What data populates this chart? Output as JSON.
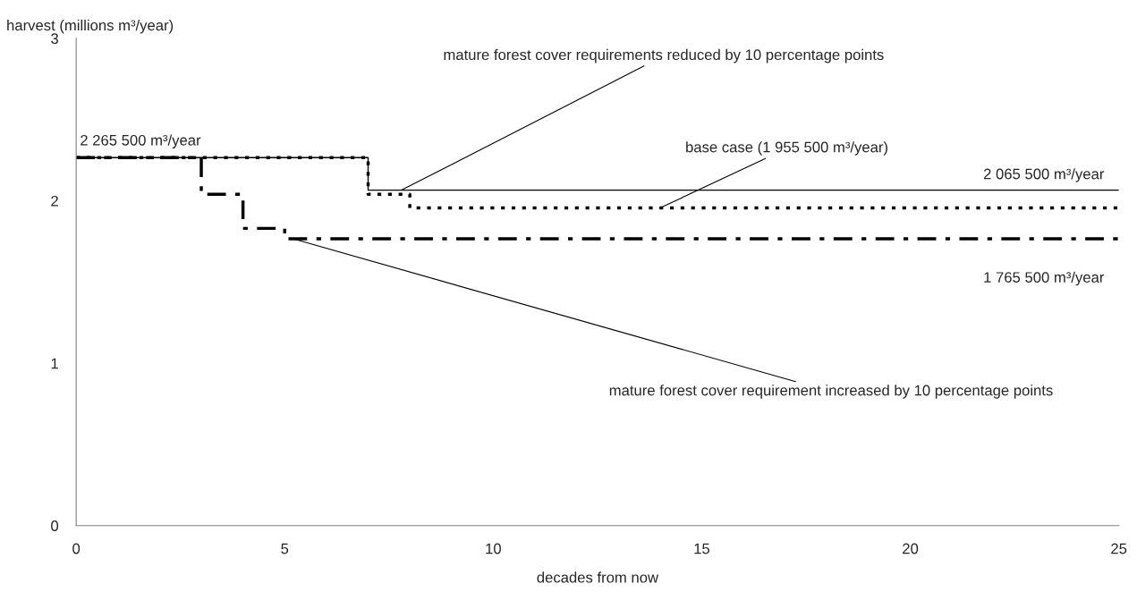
{
  "chart_data": {
    "type": "step",
    "ylabel": "harvest (millions m³/year)",
    "xlabel": "decades from now",
    "xlim": [
      0,
      25
    ],
    "xticks": [
      0,
      5,
      10,
      15,
      20,
      25
    ],
    "ylim": [
      0,
      3
    ],
    "yticks": [
      0,
      1,
      2,
      3
    ],
    "grid": false,
    "legend": false,
    "series": [
      {
        "color": "#000000",
        "line_style": "solid",
        "x": [
          0,
          7,
          25
        ],
        "values": [
          2.2655,
          2.0655,
          2.0655
        ]
      },
      {
        "color": "#000000",
        "line_style": "dotted",
        "x": [
          0,
          7,
          8,
          25
        ],
        "values": [
          2.2655,
          2.04,
          1.9555,
          1.9555
        ]
      },
      {
        "color": "#000000",
        "line_style": "dashed",
        "x": [
          0,
          3,
          4,
          5,
          25
        ],
        "values": [
          2.2655,
          2.04,
          1.83,
          1.7655,
          1.7655
        ]
      }
    ],
    "annotations": [
      {
        "text": "mature forest cover requirements reduced by 10 percentage points",
        "x": 7.8,
        "y": 2.0655
      },
      {
        "text": "base case (1 955 500 m³/year)",
        "x": 14,
        "y": 1.9555
      },
      {
        "text": "mature forest cover requirement increased by 10 percentage points",
        "x": 5.2,
        "y": 1.7655
      },
      {
        "text": "2 265 500 m³/year",
        "x": 0,
        "y": 2.2655
      },
      {
        "text": "2 065 500 m³/year",
        "x": 23.2,
        "y": 2.0655
      },
      {
        "text": "1 765 500 m³/year",
        "x": 23.2,
        "y": 1.7655
      }
    ]
  }
}
